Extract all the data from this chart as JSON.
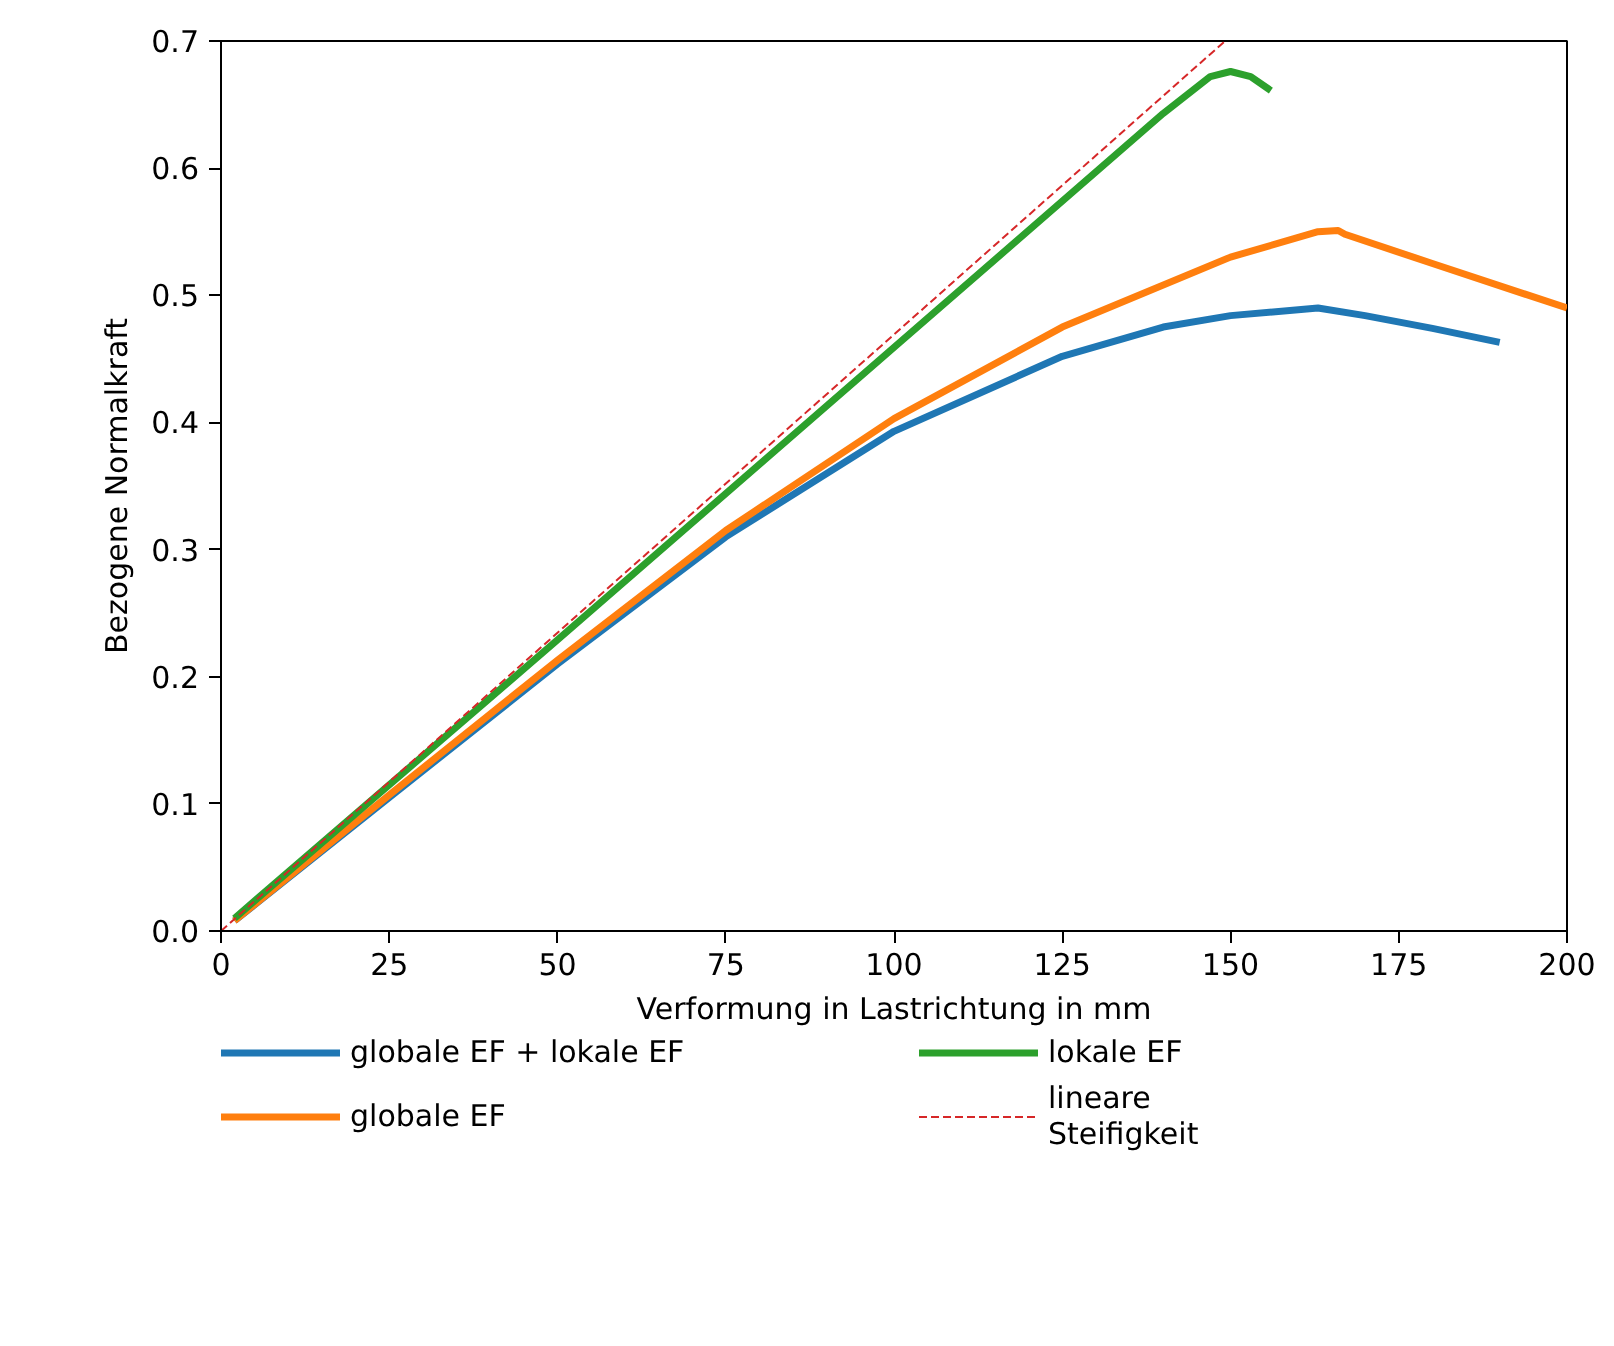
{
  "chart_data": {
    "type": "line",
    "xlabel": "Verformung in Lastrichtung in mm",
    "ylabel": "Bezogene Normalkraft",
    "xlim": [
      0,
      200
    ],
    "ylim": [
      0,
      0.7
    ],
    "xticks": [
      0,
      25,
      50,
      75,
      100,
      125,
      150,
      175,
      200
    ],
    "yticks": [
      {
        "value": 0,
        "label": "0.0"
      },
      0.1,
      0.2,
      0.3,
      0.4,
      0.5,
      0.6,
      0.7
    ],
    "grid": false,
    "legend": "bottom",
    "series": [
      {
        "name": "globale EF + lokale EF",
        "color": "#1f77b4",
        "x": [
          2,
          25,
          50,
          75,
          100,
          125,
          140,
          150,
          163,
          170,
          180,
          190
        ],
        "values": [
          0.008,
          0.105,
          0.21,
          0.31,
          0.393,
          0.452,
          0.475,
          0.484,
          0.49,
          0.484,
          0.474,
          0.463
        ]
      },
      {
        "name": "globale EF",
        "color": "#ff7f0e",
        "x": [
          2,
          25,
          50,
          75,
          100,
          125,
          150,
          163,
          166,
          167,
          180,
          200
        ],
        "values": [
          0.008,
          0.107,
          0.213,
          0.315,
          0.403,
          0.475,
          0.53,
          0.55,
          0.551,
          0.548,
          0.525,
          0.49
        ]
      },
      {
        "name": "lokale EF",
        "color": "#2ca02c",
        "x": [
          2,
          50,
          100,
          140,
          147,
          150,
          153,
          156
        ],
        "values": [
          0.01,
          0.229,
          0.459,
          0.643,
          0.672,
          0.676,
          0.672,
          0.661
        ]
      },
      {
        "name": "lineare\nSteifigkeit",
        "color": "#d62728",
        "line_style": "dashed",
        "x": [
          0,
          149.2
        ],
        "values": [
          0,
          0.7
        ]
      }
    ]
  }
}
